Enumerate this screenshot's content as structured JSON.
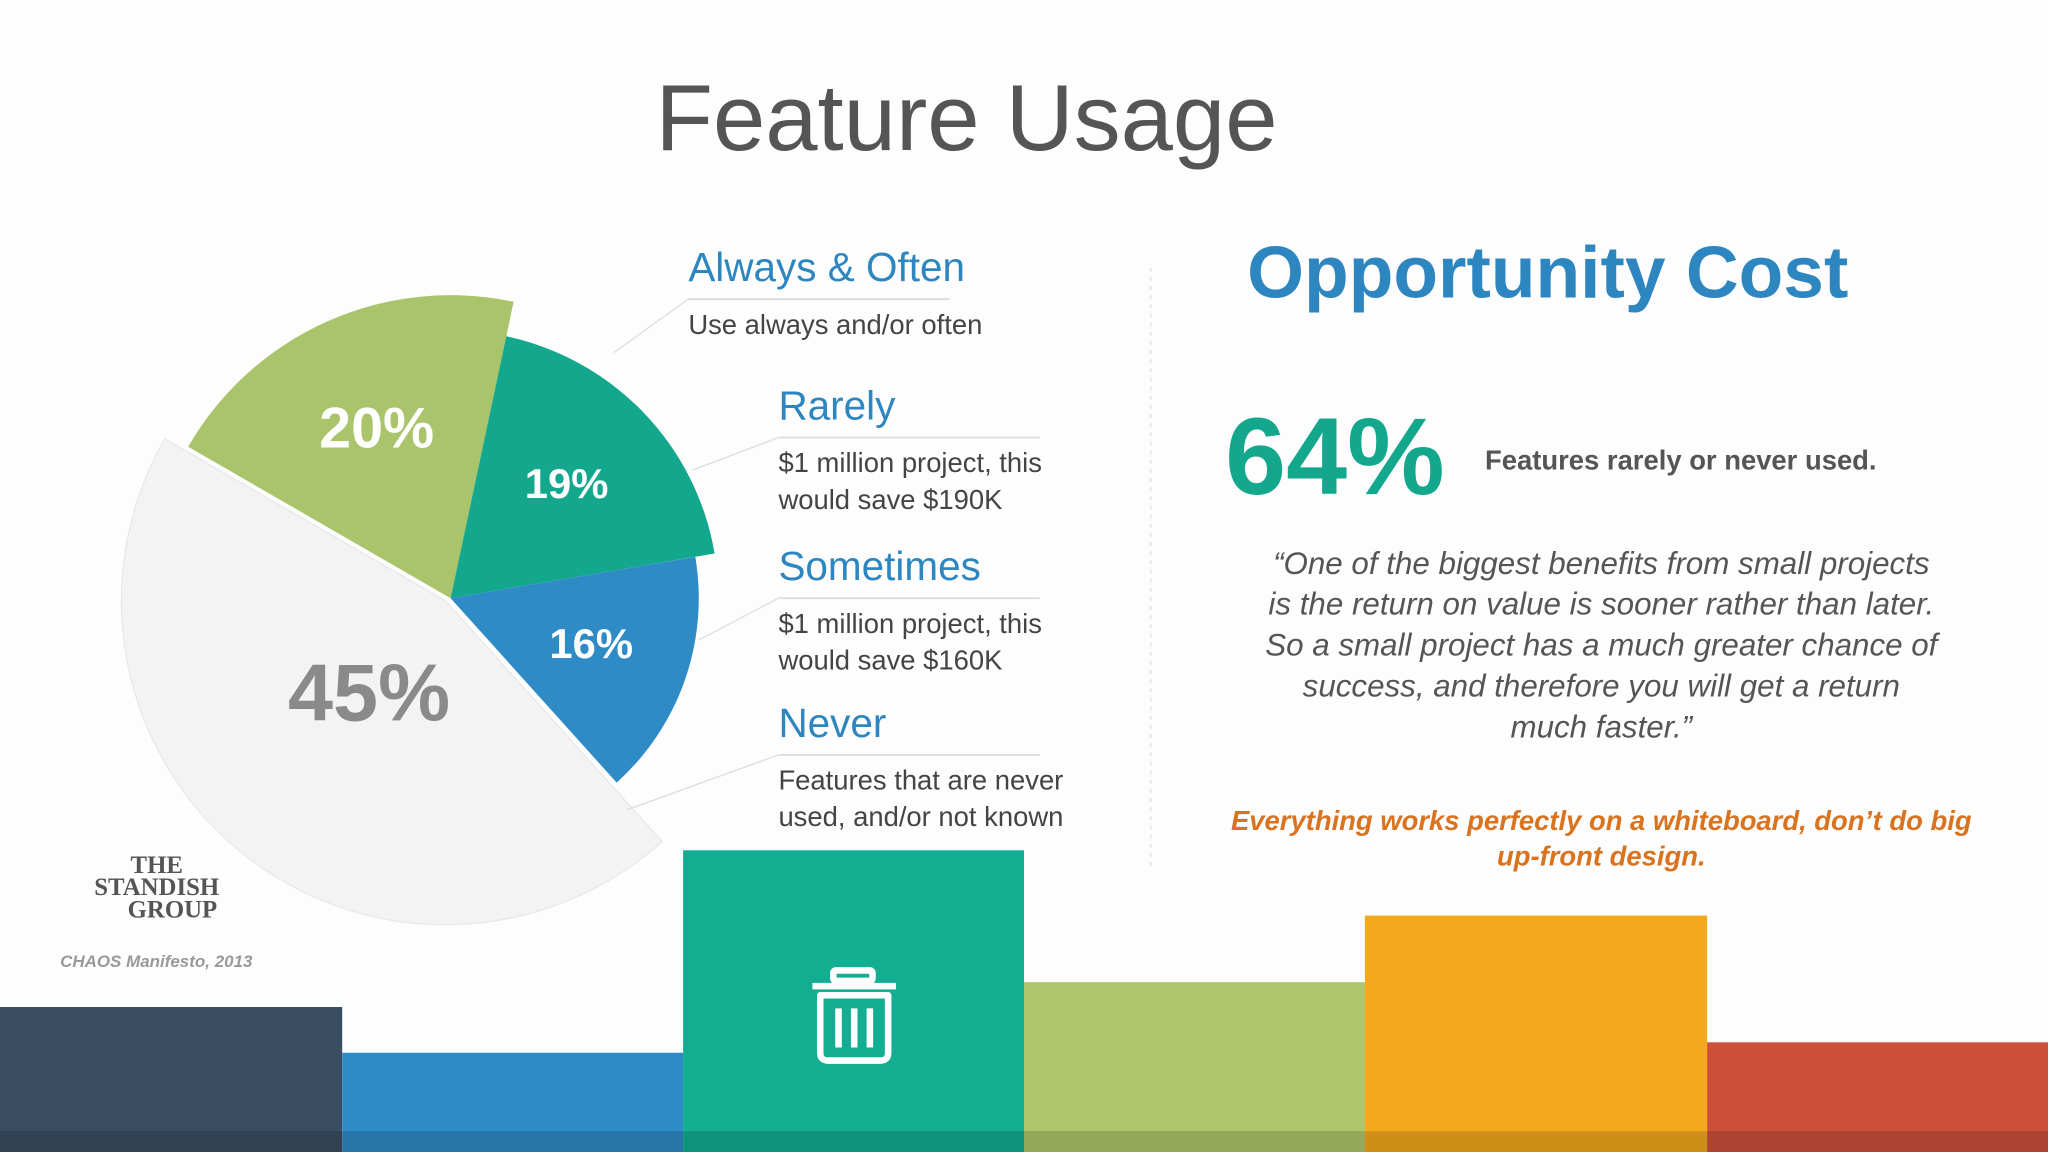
{
  "chart_data": {
    "type": "pie",
    "title": "Feature Usage",
    "categories": [
      "Always & Often",
      "Rarely",
      "Sometimes",
      "Never"
    ],
    "values": [
      20,
      19,
      16,
      45
    ],
    "value_labels": [
      "20%",
      "19%",
      "16%",
      "45%"
    ],
    "colors": [
      "#a9c46a",
      "#13a88d",
      "#2f8bc6",
      "#f3f3f4"
    ]
  },
  "descriptions": [
    [
      "Use always and/or often"
    ],
    [
      "$1 million project, this",
      "would save $190K"
    ],
    [
      "$1 million project, this",
      "would save $160K"
    ],
    [
      "Features that are never",
      "used, and/or not known"
    ]
  ],
  "logo": [
    "THE",
    "STANDISH",
    "GROUP"
  ],
  "source": "CHAOS Manifesto, 2013",
  "opportunity": {
    "title": "Opportunity Cost",
    "stat": "64%",
    "stat_text": "Features rarely or never used.",
    "quote": [
      "“One of the biggest benefits from small projects",
      "is the return on value is sooner rather than later.",
      "So a small project has a much greater chance of",
      "success, and therefore you will get a return",
      "much faster.”"
    ],
    "tagline": [
      "Everything works perfectly on a whiteboard, don’t do big",
      "up-front design."
    ]
  }
}
